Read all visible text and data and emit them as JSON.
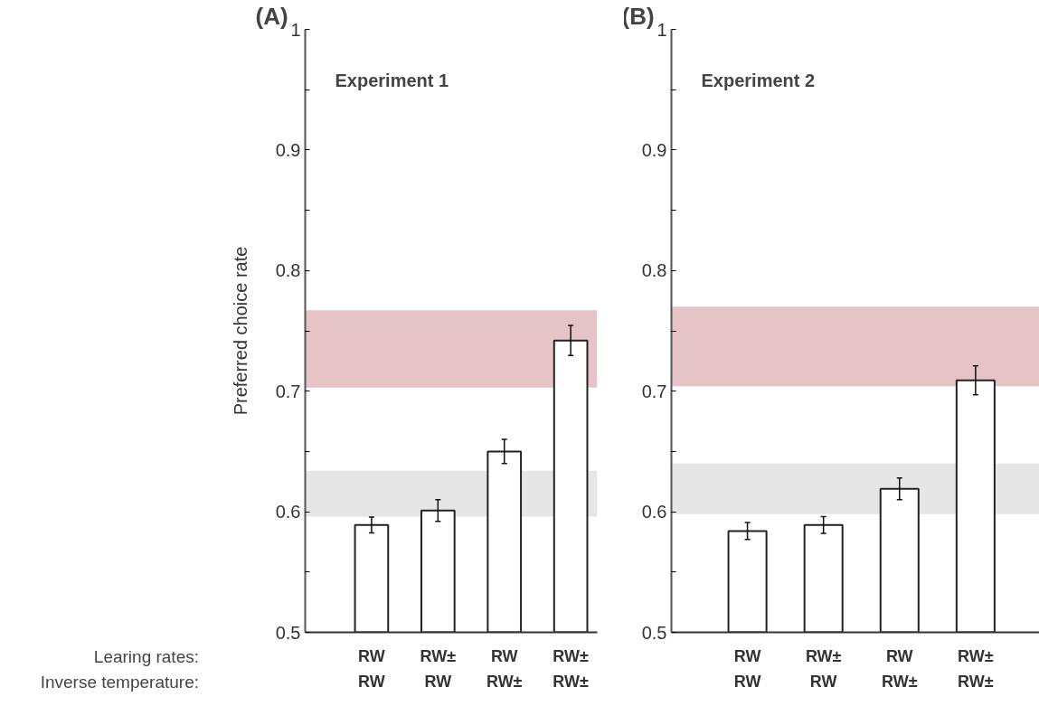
{
  "chart_data": [
    {
      "type": "bar",
      "title": "(A)",
      "subtitle": "Experiment 1",
      "ylabel": "Preferred choice rate",
      "categories": [
        "RW\nRW",
        "RW±\nRW",
        "RW\nRW±",
        "RW±\nRW±"
      ],
      "values": [
        0.589,
        0.601,
        0.65,
        0.742
      ],
      "errors": [
        0.0065,
        0.009,
        0.01,
        0.0125
      ],
      "color": "#ffffff",
      "ylim": [
        0.5,
        1
      ],
      "yticks": [
        0.5,
        {
          "value": 0.55,
          "label": null
        },
        0.6,
        {
          "value": 0.65,
          "label": null
        },
        0.7,
        {
          "value": 0.75,
          "label": null
        },
        0.8,
        {
          "value": 0.85,
          "label": null
        },
        0.9,
        {
          "value": 0.95,
          "label": null
        },
        1
      ],
      "bands": [
        {
          "axis": "y",
          "from": 0.703,
          "to": 0.767,
          "color": "#e6c3c7"
        },
        {
          "axis": "y",
          "from": 0.596,
          "to": 0.634,
          "color": "#e6e6e6"
        }
      ],
      "annotations": [
        "Learing rates:",
        "Inverse temperature:"
      ],
      "grid": false
    },
    {
      "type": "bar",
      "title": "(B)",
      "subtitle": "Experiment 2",
      "categories": [
        "RW\nRW",
        "RW±\nRW",
        "RW\nRW±",
        "RW±\nRW±"
      ],
      "values": [
        0.584,
        0.589,
        0.619,
        0.709
      ],
      "errors": [
        0.007,
        0.007,
        0.009,
        0.012
      ],
      "color": "#ffffff",
      "ylim": [
        0.5,
        1
      ],
      "yticks": [
        0.5,
        {
          "value": 0.55,
          "label": null
        },
        0.6,
        {
          "value": 0.65,
          "label": null
        },
        0.7,
        {
          "value": 0.75,
          "label": null
        },
        0.8,
        {
          "value": 0.85,
          "label": null
        },
        0.9,
        {
          "value": 0.95,
          "label": null
        },
        1
      ],
      "bands": [
        {
          "axis": "y",
          "from": 0.704,
          "to": 0.77,
          "color": "#e6c3c7"
        },
        {
          "axis": "y",
          "from": 0.598,
          "to": 0.64,
          "color": "#e6e6e6"
        }
      ],
      "grid": false
    }
  ]
}
